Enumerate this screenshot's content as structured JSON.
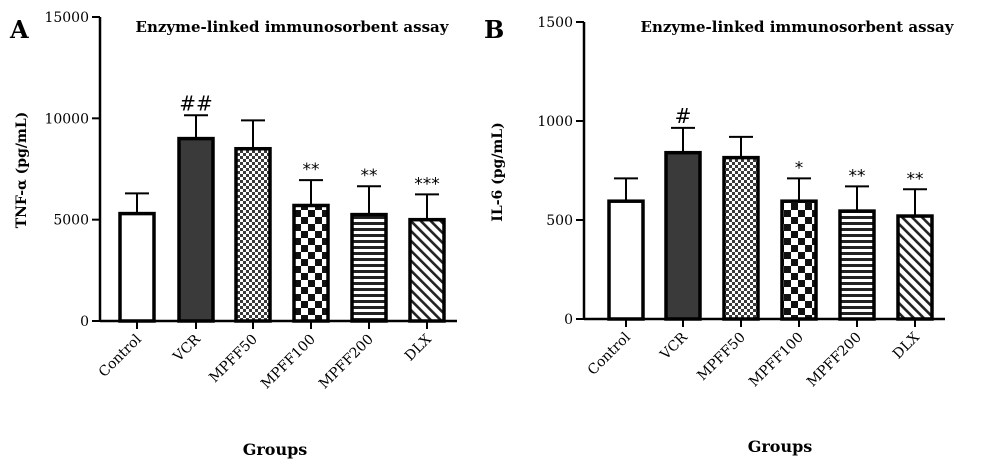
{
  "chart_data": [
    {
      "panel_letter": "A",
      "type": "bar",
      "title": "Enzyme-linked immunosorbent assay",
      "xlabel": "Groups",
      "ylabel": "TNF-α  (pg/mL)",
      "ylim": [
        0,
        15000
      ],
      "yticks": [
        "0",
        "5000",
        "10000",
        "15000"
      ],
      "ytick_values": [
        0,
        5000,
        10000,
        15000
      ],
      "categories": [
        "Control",
        "VCR",
        "MPFF50",
        "MPFF100",
        "MPFF200",
        "DLX"
      ],
      "values": [
        5300,
        9000,
        8500,
        5700,
        5250,
        5000
      ],
      "errors": [
        1000,
        1150,
        1400,
        1250,
        1400,
        1250
      ],
      "significance": [
        "",
        "##",
        "",
        "**",
        "**",
        "***"
      ],
      "fills": [
        "white",
        "dark",
        "checker-fine",
        "checker-coarse",
        "hlines",
        "diag"
      ]
    },
    {
      "panel_letter": "B",
      "type": "bar",
      "title": "Enzyme-linked immunosorbent assay",
      "xlabel": "Groups",
      "ylabel": "IL-6 (pg/mL)",
      "ylim": [
        0,
        1500
      ],
      "yticks": [
        "0",
        "500",
        "1000",
        "1500"
      ],
      "ytick_values": [
        0,
        500,
        1000,
        1500
      ],
      "categories": [
        "Control",
        "VCR",
        "MPFF50",
        "MPFF100",
        "MPFF200",
        "DLX"
      ],
      "values": [
        595,
        840,
        815,
        595,
        545,
        520
      ],
      "errors": [
        115,
        125,
        105,
        115,
        125,
        135
      ],
      "significance": [
        "",
        "#",
        "",
        "*",
        "**",
        "**"
      ],
      "fills": [
        "white",
        "dark",
        "checker-fine",
        "checker-coarse",
        "hlines",
        "diag"
      ]
    }
  ]
}
